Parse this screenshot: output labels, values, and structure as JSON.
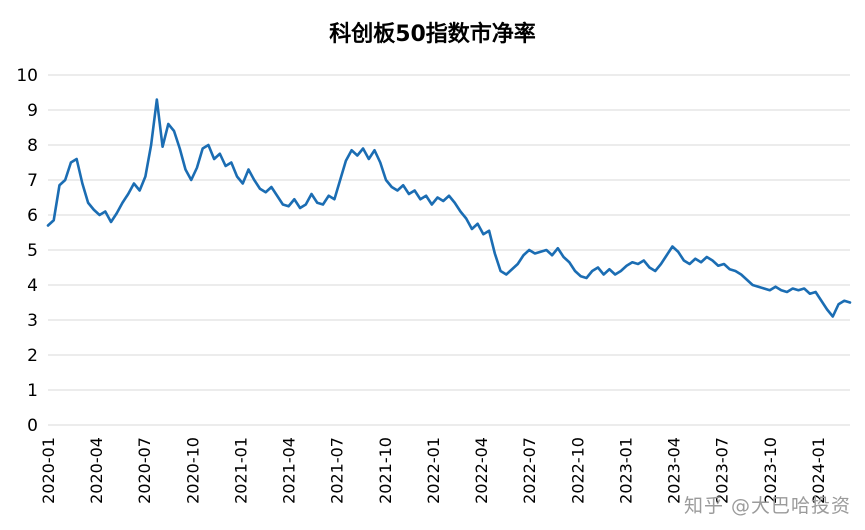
{
  "title": "科创板50指数市净率",
  "watermark": "知乎 @大巴哈投资",
  "chart_data": {
    "type": "line",
    "title": "科创板50指数市净率",
    "ylabel": "",
    "xlabel": "",
    "ylim": [
      0,
      10
    ],
    "y_ticks": [
      0,
      1,
      2,
      3,
      4,
      5,
      6,
      7,
      8,
      9,
      10
    ],
    "grid": true,
    "legend": "none",
    "line_color": "#1b6db3",
    "grid_color": "#d9d9d9",
    "x_tick_labels": [
      "2020-01",
      "2020-04",
      "2020-07",
      "2020-10",
      "2021-01",
      "2021-04",
      "2021-07",
      "2021-10",
      "2022-01",
      "2022-04",
      "2022-07",
      "2022-10",
      "2023-01",
      "2023-04",
      "2023-07",
      "2023-10",
      "2024-01"
    ],
    "x_tick_months": [
      0,
      3,
      6,
      9,
      12,
      15,
      18,
      21,
      24,
      27,
      30,
      33,
      36,
      39,
      42,
      45,
      48
    ],
    "total_months": 50,
    "values": [
      5.7,
      5.85,
      6.85,
      7.0,
      7.5,
      7.6,
      6.9,
      6.35,
      6.15,
      6.0,
      6.1,
      5.8,
      6.05,
      6.35,
      6.6,
      6.9,
      6.7,
      7.1,
      8.0,
      9.3,
      7.95,
      8.6,
      8.4,
      7.9,
      7.3,
      7.0,
      7.35,
      7.9,
      8.0,
      7.6,
      7.75,
      7.4,
      7.5,
      7.1,
      6.9,
      7.3,
      7.0,
      6.75,
      6.65,
      6.8,
      6.55,
      6.3,
      6.25,
      6.45,
      6.2,
      6.3,
      6.6,
      6.35,
      6.3,
      6.55,
      6.45,
      7.0,
      7.55,
      7.85,
      7.7,
      7.9,
      7.6,
      7.85,
      7.5,
      7.0,
      6.8,
      6.7,
      6.85,
      6.6,
      6.7,
      6.45,
      6.55,
      6.3,
      6.5,
      6.4,
      6.55,
      6.35,
      6.1,
      5.9,
      5.6,
      5.75,
      5.45,
      5.55,
      4.9,
      4.4,
      4.3,
      4.45,
      4.6,
      4.85,
      5.0,
      4.9,
      4.95,
      5.0,
      4.85,
      5.05,
      4.8,
      4.65,
      4.4,
      4.25,
      4.2,
      4.4,
      4.5,
      4.3,
      4.45,
      4.3,
      4.4,
      4.55,
      4.65,
      4.6,
      4.7,
      4.5,
      4.4,
      4.6,
      4.85,
      5.1,
      4.95,
      4.7,
      4.6,
      4.75,
      4.65,
      4.8,
      4.7,
      4.55,
      4.6,
      4.45,
      4.4,
      4.3,
      4.15,
      4.0,
      3.95,
      3.9,
      3.85,
      3.95,
      3.85,
      3.8,
      3.9,
      3.85,
      3.9,
      3.75,
      3.8,
      3.55,
      3.3,
      3.1,
      3.45,
      3.55,
      3.5
    ]
  }
}
